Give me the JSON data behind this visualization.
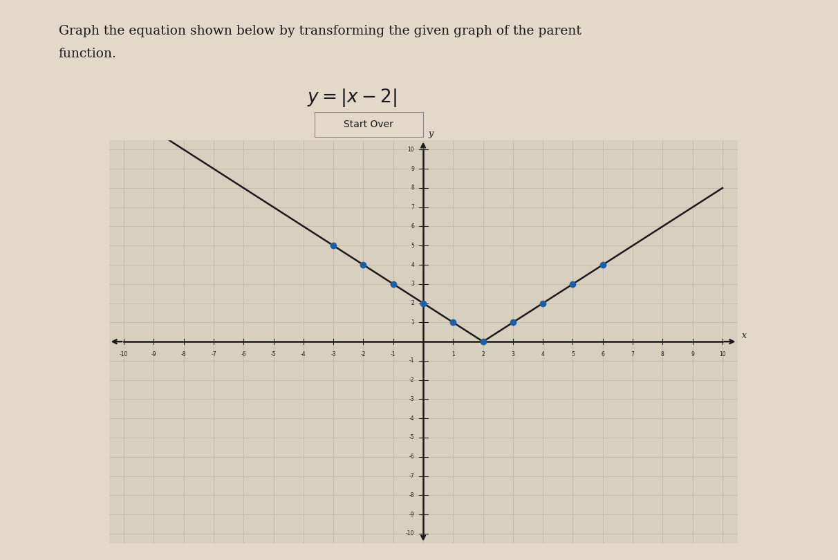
{
  "title_line1": "Graph the equation shown below by transforming the given graph of the parent",
  "title_line2": "function.",
  "equation_latex": "$y = |x - 2|$",
  "button_text": "Start Over",
  "xlim": [
    -10,
    10
  ],
  "ylim": [
    -10,
    10
  ],
  "line_color": "#1a1a1a",
  "dot_color": "#1a5fa8",
  "dot_points": [
    [
      -3,
      5
    ],
    [
      -2,
      4
    ],
    [
      -1,
      3
    ],
    [
      0,
      2
    ],
    [
      1,
      1
    ],
    [
      2,
      0
    ],
    [
      3,
      1
    ],
    [
      4,
      2
    ],
    [
      5,
      3
    ],
    [
      6,
      4
    ]
  ],
  "background_color": "#e2d9c8",
  "grid_color": "#c0b8a8",
  "axis_color": "#1a1a1a",
  "font_color": "#1a1a1a",
  "graph_bg": "#d8d0be"
}
